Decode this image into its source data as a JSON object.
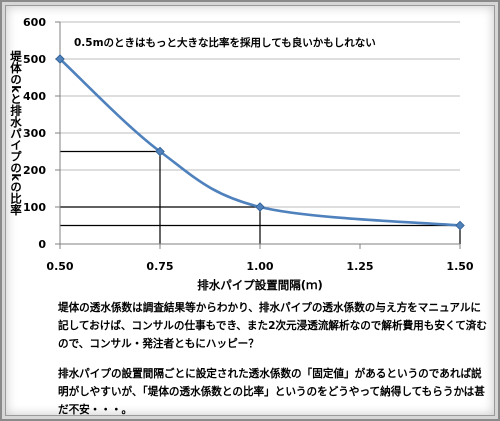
{
  "chart_data": {
    "type": "line",
    "annotation": "0.5mのときはもっと大きな比率を採用しても良いかもしれない",
    "xlabel": "排水パイプ設置間隔(ｍ)",
    "ylabel": "堤体のkと排水パイプのkの比率",
    "xlim": [
      0.5,
      1.5
    ],
    "ylim": [
      0,
      600
    ],
    "xticks": [
      "0.50",
      "0.75",
      "1.00",
      "1.25",
      "1.50"
    ],
    "yticks": [
      "0",
      "100",
      "200",
      "300",
      "400",
      "500",
      "600"
    ],
    "grid": "horizontal",
    "series": [
      {
        "color": "#4f81bd",
        "points": [
          {
            "x": 0.5,
            "y": 500
          },
          {
            "x": 0.75,
            "y": 250
          },
          {
            "x": 1.0,
            "y": 100
          },
          {
            "x": 1.5,
            "y": 50
          }
        ]
      }
    ],
    "reference_lines": [
      {
        "x": 0.75,
        "y": 250
      },
      {
        "x": 1.0,
        "y": 100
      },
      {
        "x": 1.5,
        "y": 50
      }
    ]
  },
  "text": {
    "paragraph1": "堤体の透水係数は調査結果等からわかり、排水パイプの透水係数の与え方をマニュアルに記しておけば、コンサルの仕事もでき、また2次元浸透流解析なので解析費用も安くて済むので、コンサル・発注者ともにハッピー？",
    "paragraph2": "排水パイプの設置間隔ごとに設定された透水係数の「固定値」があるというのであれば説明がしやすいが、「堤体の透水係数との比率」というのをどうやって納得してもらうかは甚だ不安・・・。"
  }
}
